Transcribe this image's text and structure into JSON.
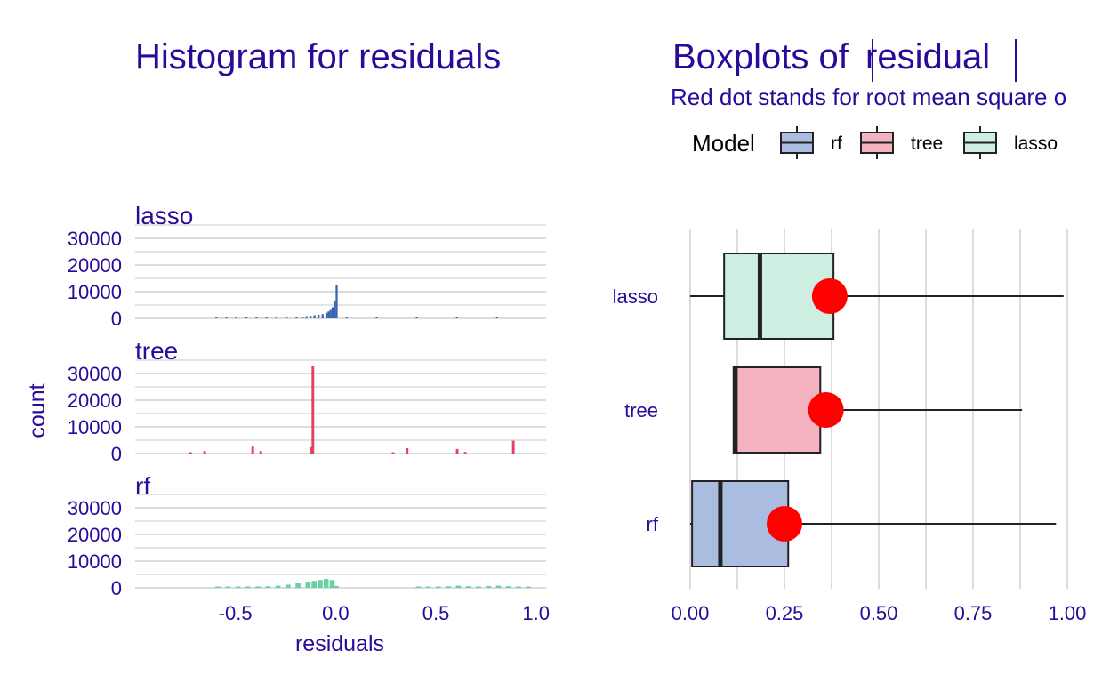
{
  "colors": {
    "text": "#2a0a9a",
    "grid": "#dcdcdc",
    "rmse_dot": "#ff0000",
    "rf": "#3a63b0",
    "tree": "#e0435f",
    "lasso": "#67d1a4",
    "rf_box": "#aabde0",
    "tree_box": "#f5b3c2",
    "lasso_box": "#cdeee1"
  },
  "left": {
    "title": "Histogram for residuals",
    "xlabel": "residuals",
    "ylabel": "count"
  },
  "right": {
    "title_prefix": "Boxplots of ",
    "title_word": "residual",
    "subtitle": "Red dot stands for root mean square o",
    "legend_title": "Model"
  },
  "chart_data": [
    {
      "type": "histogram",
      "title": "Histogram for residuals",
      "xlabel": "residuals",
      "ylabel": "count",
      "xlim": [
        -1.0,
        1.05
      ],
      "ylim": [
        0,
        35000
      ],
      "x_ticks": [
        "-0.5",
        "0.0",
        "0.5",
        "1.0"
      ],
      "x_tick_values": [
        -0.5,
        0.0,
        0.5,
        1.0
      ],
      "y_ticks": [
        "30000",
        "20000",
        "10000",
        "0"
      ],
      "y_tick_values": [
        30000,
        20000,
        10000,
        0
      ],
      "facets": [
        {
          "name": "lasso",
          "bin_width": 0.01,
          "bins": [
            [
              -0.6,
              80
            ],
            [
              -0.55,
              80
            ],
            [
              -0.5,
              90
            ],
            [
              -0.45,
              110
            ],
            [
              -0.4,
              130
            ],
            [
              -0.35,
              200
            ],
            [
              -0.3,
              300
            ],
            [
              -0.25,
              380
            ],
            [
              -0.2,
              500
            ],
            [
              -0.17,
              650
            ],
            [
              -0.15,
              800
            ],
            [
              -0.13,
              950
            ],
            [
              -0.11,
              1150
            ],
            [
              -0.09,
              1350
            ],
            [
              -0.07,
              1600
            ],
            [
              -0.05,
              2100
            ],
            [
              -0.04,
              2600
            ],
            [
              -0.03,
              3200
            ],
            [
              -0.02,
              4200
            ],
            [
              -0.01,
              6500
            ],
            [
              0.0,
              12500
            ],
            [
              0.05,
              60
            ],
            [
              0.2,
              60
            ],
            [
              0.4,
              60
            ],
            [
              0.6,
              60
            ],
            [
              0.8,
              50
            ]
          ]
        },
        {
          "name": "tree",
          "bin_width": 0.013,
          "bins": [
            [
              -0.73,
              300
            ],
            [
              -0.66,
              900
            ],
            [
              -0.42,
              2600
            ],
            [
              -0.38,
              900
            ],
            [
              -0.12,
              32800
            ],
            [
              -0.13,
              2400
            ],
            [
              0.28,
              500
            ],
            [
              0.35,
              2000
            ],
            [
              0.6,
              1700
            ],
            [
              0.64,
              600
            ],
            [
              0.88,
              4800
            ]
          ]
        },
        {
          "name": "rf",
          "bin_width": 0.025,
          "bins": [
            [
              -0.6,
              200
            ],
            [
              -0.55,
              250
            ],
            [
              -0.5,
              300
            ],
            [
              -0.45,
              400
            ],
            [
              -0.4,
              500
            ],
            [
              -0.35,
              600
            ],
            [
              -0.3,
              800
            ],
            [
              -0.25,
              1200
            ],
            [
              -0.2,
              1700
            ],
            [
              -0.15,
              2300
            ],
            [
              -0.12,
              2600
            ],
            [
              -0.09,
              2900
            ],
            [
              -0.06,
              3300
            ],
            [
              -0.03,
              2900
            ],
            [
              -0.01,
              700
            ],
            [
              0.4,
              300
            ],
            [
              0.45,
              300
            ],
            [
              0.5,
              400
            ],
            [
              0.55,
              600
            ],
            [
              0.6,
              800
            ],
            [
              0.65,
              600
            ],
            [
              0.7,
              500
            ],
            [
              0.75,
              700
            ],
            [
              0.8,
              800
            ],
            [
              0.85,
              600
            ],
            [
              0.9,
              400
            ],
            [
              0.95,
              200
            ]
          ]
        }
      ]
    },
    {
      "type": "boxplot",
      "title": "Boxplots of |residual|",
      "subtitle": "Red dot stands for root mean square o",
      "legend_title": "Model",
      "legend": [
        "rf",
        "tree",
        "lasso"
      ],
      "xlim": [
        0,
        1.0
      ],
      "x_ticks": [
        "0.00",
        "0.25",
        "0.50",
        "0.75",
        "1.00"
      ],
      "x_tick_values": [
        0.0,
        0.25,
        0.5,
        0.75,
        1.0
      ],
      "categories": [
        "lasso",
        "tree",
        "rf"
      ],
      "boxes": [
        {
          "name": "lasso",
          "min": 0.0,
          "q1": 0.09,
          "median": 0.185,
          "q3": 0.38,
          "max": 0.99,
          "rmse": 0.37
        },
        {
          "name": "tree",
          "min": 0.115,
          "q1": 0.115,
          "median": 0.12,
          "q3": 0.345,
          "max": 0.88,
          "rmse": 0.36
        },
        {
          "name": "rf",
          "min": 0.0,
          "q1": 0.005,
          "median": 0.08,
          "q3": 0.26,
          "max": 0.97,
          "rmse": 0.25
        }
      ]
    }
  ]
}
